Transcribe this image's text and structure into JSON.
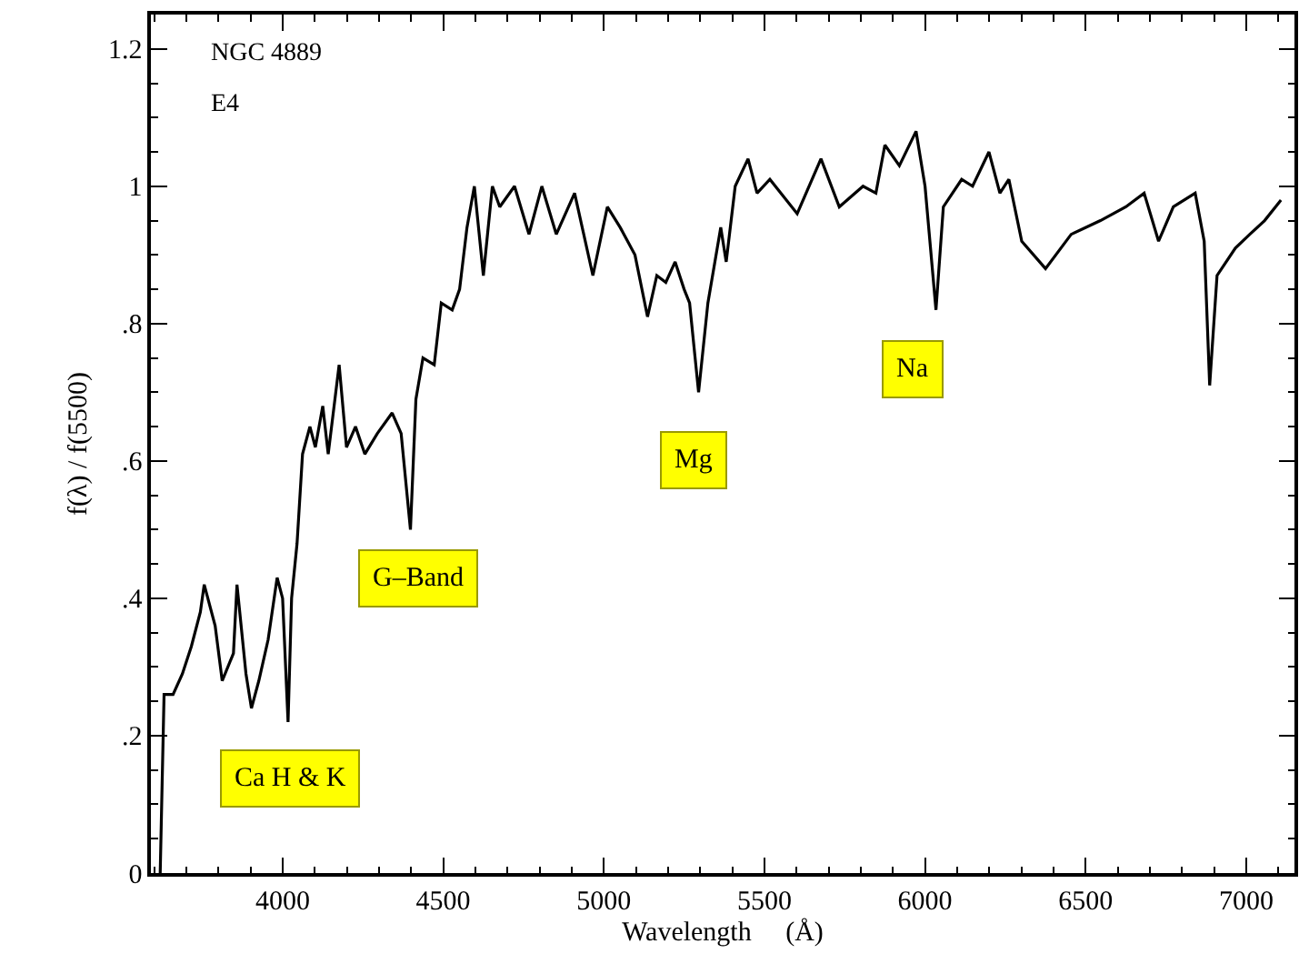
{
  "chart_data": {
    "type": "line",
    "xlabel": "Wavelength     (Å)",
    "ylabel": "f(λ) / f(5500)",
    "annotations": [
      "NGC 4889",
      "E4",
      "Ca H & K",
      "G–Band",
      "Mg",
      "Na"
    ],
    "xlim": [
      3590,
      7150
    ],
    "ylim": [
      0,
      1.25
    ],
    "xticks": [
      4000,
      4500,
      5000,
      5500,
      6000,
      6500,
      7000
    ],
    "yticks": [
      0,
      {
        "value": 0.2,
        "label": ".2"
      },
      {
        "value": 0.4,
        "label": ".4"
      },
      {
        "value": 0.6,
        "label": ".6"
      },
      {
        "value": 0.8,
        "label": ".8"
      },
      1,
      {
        "value": 1.2,
        "label": "1.2"
      }
    ],
    "legend": false,
    "marker": "none",
    "line_style": "solid",
    "series": [
      {
        "color": "#000000",
        "x": [
          3619,
          3631,
          3659,
          3688,
          3716,
          3744,
          3756,
          3790,
          3812,
          3847,
          3858,
          3886,
          3903,
          3926,
          3955,
          3983,
          4000,
          4017,
          4028,
          4045,
          4062,
          4085,
          4102,
          4125,
          4142,
          4176,
          4199,
          4227,
          4256,
          4295,
          4341,
          4369,
          4398,
          4415,
          4437,
          4472,
          4494,
          4528,
          4551,
          4574,
          4597,
          4625,
          4653,
          4676,
          4722,
          4767,
          4807,
          4852,
          4909,
          4966,
          5011,
          5051,
          5097,
          5136,
          5165,
          5193,
          5222,
          5250,
          5267,
          5295,
          5324,
          5364,
          5381,
          5409,
          5449,
          5477,
          5517,
          5602,
          5676,
          5733,
          5807,
          5847,
          5875,
          5920,
          5972,
          6000,
          6034,
          6057,
          6114,
          6148,
          6199,
          6233,
          6261,
          6301,
          6375,
          6455,
          6546,
          6625,
          6682,
          6727,
          6773,
          6841,
          6869,
          6886,
          6909,
          6966,
          7011,
          7057,
          7108
        ],
        "values": [
          0,
          0.26,
          0.26,
          0.29,
          0.33,
          0.38,
          0.42,
          0.36,
          0.28,
          0.32,
          0.42,
          0.29,
          0.24,
          0.28,
          0.34,
          0.43,
          0.4,
          0.22,
          0.4,
          0.48,
          0.61,
          0.65,
          0.62,
          0.68,
          0.61,
          0.74,
          0.62,
          0.65,
          0.61,
          0.64,
          0.67,
          0.64,
          0.5,
          0.69,
          0.75,
          0.74,
          0.83,
          0.82,
          0.85,
          0.94,
          1.0,
          0.87,
          1.0,
          0.97,
          1.0,
          0.93,
          1.0,
          0.93,
          0.99,
          0.87,
          0.97,
          0.94,
          0.9,
          0.81,
          0.87,
          0.86,
          0.89,
          0.85,
          0.83,
          0.7,
          0.83,
          0.94,
          0.89,
          1.0,
          1.04,
          0.99,
          1.01,
          0.96,
          1.04,
          0.97,
          1.0,
          0.99,
          1.06,
          1.03,
          1.08,
          1.0,
          0.82,
          0.97,
          1.01,
          1.0,
          1.05,
          0.99,
          1.01,
          0.92,
          0.88,
          0.93,
          0.95,
          0.97,
          0.99,
          0.92,
          0.97,
          0.99,
          0.92,
          0.71,
          0.87,
          0.91,
          0.93,
          0.95,
          0.98
        ]
      }
    ]
  }
}
